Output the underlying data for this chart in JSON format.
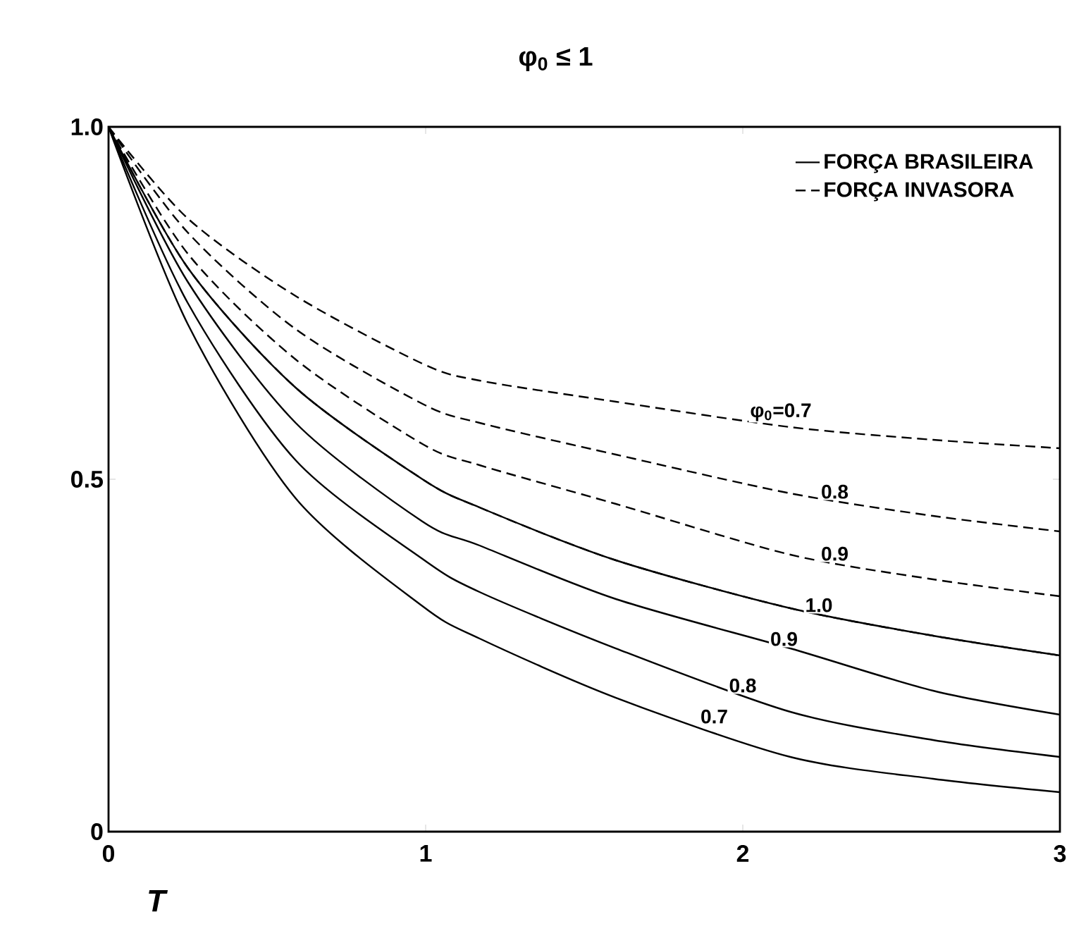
{
  "chart_data": {
    "type": "line",
    "title": "φ$_{0}$ ≤ 1",
    "xlabel": "T",
    "x": [
      0,
      0.25,
      0.59,
      0.99,
      1.17,
      1.6,
      2.15,
      2.6,
      3
    ],
    "series": [
      {
        "name": "FORÇA BRASILEIRA",
        "color": "#000000",
        "line_style": "solid",
        "values": [
          1,
          0.72,
          0.473,
          0.32,
          0.274,
          0.19,
          0.106,
          0.075,
          0.056
        ]
      },
      {
        "color": "#000000",
        "line_style": "solid",
        "values": [
          1,
          0.75,
          0.527,
          0.387,
          0.34,
          0.26,
          0.17,
          0.13,
          0.106
        ]
      },
      {
        "color": "#000000",
        "line_style": "solid",
        "values": [
          1,
          0.78,
          0.58,
          0.44,
          0.406,
          0.33,
          0.26,
          0.2,
          0.166
        ]
      },
      {
        "color": "#000000",
        "line_style": "solid",
        "values": [
          1,
          0.8,
          0.63,
          0.5,
          0.46,
          0.385,
          0.317,
          0.278,
          0.25
        ]
      },
      {
        "name": "FORÇA INVASORA",
        "color": "#000000",
        "line_style": "dashed",
        "values": [
          1,
          0.87,
          0.76,
          0.664,
          0.64,
          0.61,
          0.574,
          0.556,
          0.544
        ]
      },
      {
        "color": "#000000",
        "line_style": "dashed",
        "values": [
          1,
          0.85,
          0.713,
          0.607,
          0.58,
          0.535,
          0.48,
          0.448,
          0.426
        ]
      },
      {
        "color": "#000000",
        "line_style": "dashed",
        "values": [
          1,
          0.82,
          0.67,
          0.55,
          0.52,
          0.465,
          0.393,
          0.358,
          0.334
        ]
      },
      {
        "color": "#000000",
        "line_style": "dashed",
        "values": [
          1,
          0.8,
          0.63,
          0.5,
          0.46,
          0.385,
          0.317,
          0.278,
          0.25
        ]
      }
    ],
    "xlim": [
      0,
      3
    ],
    "ylim": [
      0,
      1
    ],
    "xticks": [
      0,
      1,
      2,
      3
    ],
    "yticks": [
      0,
      0.5,
      {
        "value": 1,
        "label": "1.0"
      }
    ],
    "legend": "top right",
    "grid": false,
    "marker": "none",
    "annotations": [
      {
        "text": "φ$_{0}$=0.7",
        "x": 2.12,
        "y": 0.58
      },
      {
        "text": "0.8",
        "x": 2.29,
        "y": 0.47
      },
      {
        "text": "0.9",
        "x": 2.29,
        "y": 0.382
      },
      {
        "text": "1.0",
        "x": 2.24,
        "y": 0.309
      },
      {
        "text": "0.9",
        "x": 2.13,
        "y": 0.261
      },
      {
        "text": "0.8",
        "x": 2.0,
        "y": 0.195
      },
      {
        "text": "0.7",
        "x": 1.91,
        "y": 0.151
      }
    ]
  }
}
